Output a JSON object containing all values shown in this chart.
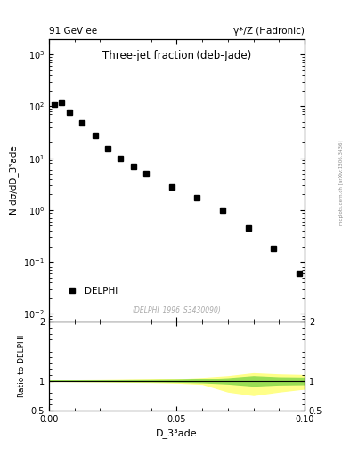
{
  "title": "Three-jet fraction (deb-Jade)",
  "header_left": "91 GeV ee",
  "header_right": "γ*/Z (Hadronic)",
  "ylabel_main": "N dσ/dD_3³ade",
  "ylabel_ratio": "Ratio to DELPHI",
  "xlabel": "D_3³ade",
  "watermark": "(DELPHI_1996_S3430090)",
  "side_text": "mcplots.cern.ch [arXiv:1306.3436]",
  "legend_label": "DELPHI",
  "data_x": [
    0.002,
    0.005,
    0.008,
    0.013,
    0.018,
    0.023,
    0.028,
    0.033,
    0.038,
    0.048,
    0.058,
    0.068,
    0.078,
    0.088,
    0.098
  ],
  "data_y": [
    110.0,
    120.0,
    78.0,
    48.0,
    27.0,
    15.0,
    10.0,
    7.0,
    5.0,
    2.8,
    1.7,
    1.0,
    0.45,
    0.18,
    0.06
  ],
  "xlim": [
    0.0,
    0.1
  ],
  "ylim_main": [
    0.007,
    2000.0
  ],
  "ylim_ratio": [
    0.5,
    2.0
  ],
  "background_color": "#ffffff",
  "data_color": "#000000",
  "marker": "s",
  "marker_size": 4,
  "green_color": "#99dd55",
  "yellow_color": "#ffff88",
  "band_x": [
    0.0,
    0.005,
    0.01,
    0.02,
    0.03,
    0.04,
    0.05,
    0.06,
    0.07,
    0.08,
    0.09,
    0.1
  ],
  "yellow_up": [
    1.005,
    1.005,
    1.007,
    1.01,
    1.015,
    1.02,
    1.03,
    1.05,
    1.08,
    1.13,
    1.11,
    1.1
  ],
  "yellow_lo": [
    0.995,
    0.995,
    0.993,
    0.99,
    0.985,
    0.98,
    0.97,
    0.95,
    0.82,
    0.76,
    0.82,
    0.87
  ],
  "green_up": [
    1.002,
    1.002,
    1.003,
    1.005,
    1.008,
    1.01,
    1.015,
    1.025,
    1.045,
    1.08,
    1.06,
    1.055
  ],
  "green_lo": [
    0.998,
    0.998,
    0.997,
    0.995,
    0.992,
    0.99,
    0.985,
    0.975,
    0.955,
    0.92,
    0.94,
    0.945
  ]
}
